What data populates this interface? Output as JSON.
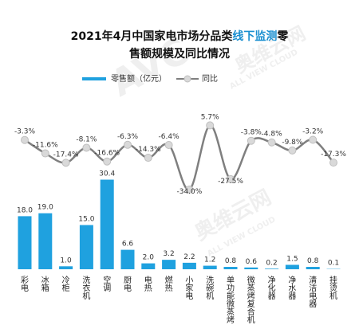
{
  "chart_data": {
    "type": "bar",
    "title_parts": [
      {
        "text": "2021年4月中国家电市场分品类",
        "color": "#111111"
      },
      {
        "text": "线下监测",
        "color": "#1a8fd0"
      },
      {
        "text": "零",
        "color": "#111111"
      }
    ],
    "title_line2": "售额规模及同比情况",
    "categories": [
      [
        "彩",
        "电"
      ],
      [
        "冰",
        "箱"
      ],
      [
        "冷",
        "柜"
      ],
      [
        "洗",
        "衣",
        "机"
      ],
      [
        "空",
        "调"
      ],
      [
        "厨",
        "电"
      ],
      [
        "电",
        "热"
      ],
      [
        "燃",
        "热"
      ],
      [
        "小",
        "家",
        "电"
      ],
      [
        "洗",
        "碗",
        "机"
      ],
      [
        "单",
        "功",
        "能",
        "微",
        "蒸",
        "烤"
      ],
      [
        "微",
        "蒸",
        "烤",
        "复",
        "合",
        "机"
      ],
      [
        "净",
        "化",
        "器"
      ],
      [
        "净",
        "水",
        "器"
      ],
      [
        "清",
        "洁",
        "电",
        "器"
      ],
      [
        "挂",
        "烫",
        "机"
      ]
    ],
    "series": [
      {
        "name": "零售额（亿元）",
        "type": "bar",
        "color": "#1fa1df",
        "values": [
          18.0,
          19.0,
          1.0,
          15.0,
          30.4,
          6.6,
          2.0,
          3.2,
          2.2,
          1.2,
          0.8,
          0.6,
          0.2,
          1.5,
          0.8,
          0.1
        ],
        "labels": [
          "18.0",
          "19.0",
          "1.0",
          "15.0",
          "30.4",
          "6.6",
          "2.0",
          "3.2",
          "2.2",
          "1.2",
          "0.8",
          "0.6",
          "0.2",
          "1.5",
          "0.8",
          "0.1"
        ]
      },
      {
        "name": "同比",
        "type": "line",
        "color": "#7f7f7f",
        "values": [
          -3.3,
          -11.6,
          -17.4,
          -8.1,
          -16.6,
          -6.3,
          -14.3,
          -6.4,
          -34.0,
          5.7,
          -27.5,
          -3.8,
          -4.8,
          -9.8,
          -3.2,
          -17.3
        ],
        "labels": [
          "-3.3%",
          "-11.6%",
          "-17.4%",
          "-8.1%",
          "-16.6%",
          "-6.3%",
          "-14.3%",
          "-6.4%",
          "-34.0%",
          "5.7%",
          "-27.5%",
          "-3.8%",
          "-4.8%",
          "-9.8%",
          "-3.2%",
          "-17.3%"
        ]
      }
    ],
    "legend_position": "top-left",
    "grid": false,
    "watermark": {
      "logo": "AVC",
      "cn": "奥维云网",
      "en": "ALL VIEW CLOUD"
    }
  }
}
